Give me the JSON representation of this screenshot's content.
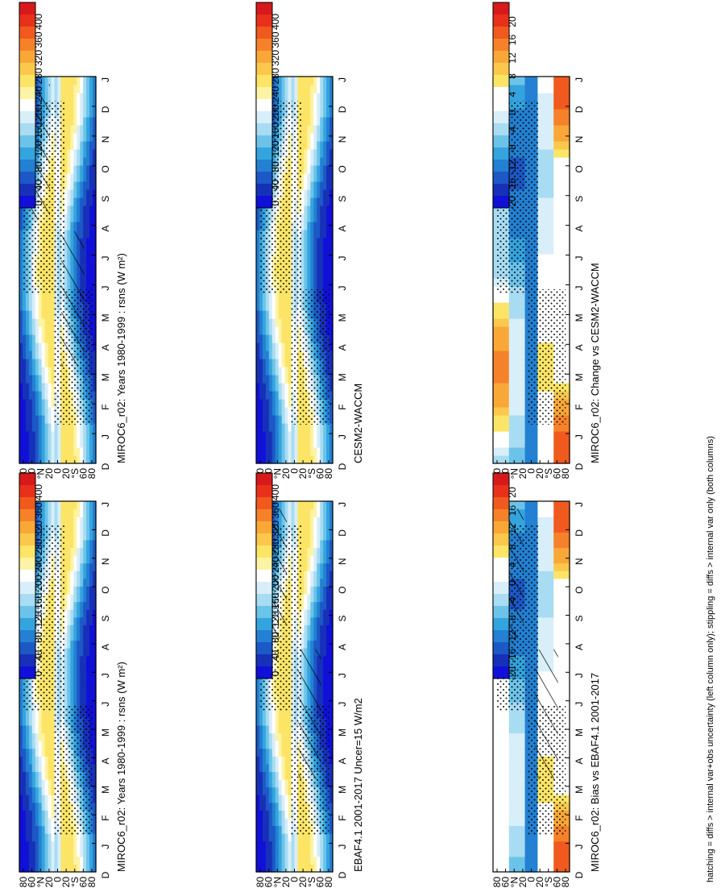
{
  "figure": {
    "footnote": "hatching = diffs > internal var+obs uncertainty (left column only); stippling = diffs > internal var only (both columns)",
    "orientation": "rotated-90-clockwise"
  },
  "chart_data": [
    {
      "type": "heatmap",
      "title": "MIROC6_r02: Years 1980-1999 : rsns (W m²)",
      "x_ticks": [
        "D",
        "J",
        "F",
        "M",
        "A",
        "M",
        "J",
        "J",
        "A",
        "S",
        "O",
        "N",
        "D",
        "J"
      ],
      "y_ticks": [
        "80",
        "60",
        "°N",
        "20",
        "0",
        "20",
        "°S",
        "60",
        "80"
      ],
      "colorbar_labels": [
        "400",
        "360",
        "320",
        "280",
        "240",
        "200",
        "160",
        "120",
        "80",
        "40",
        "0"
      ],
      "colorbar_colors": [
        "#d7191c",
        "#e8301a",
        "#f05a1e",
        "#f5822a",
        "#f9a838",
        "#fbc84c",
        "#fce566",
        "#fdf3a4",
        "#ffffff",
        "#d8eef8",
        "#a8dcf2",
        "#6cc3ea",
        "#34a4de",
        "#2380d2",
        "#1c58c6",
        "#1730b8",
        "#1010d8"
      ],
      "ylim": [
        -90,
        90
      ],
      "hatching": true
    },
    {
      "type": "heatmap",
      "title": "MIROC6_r02: Years 1980-1999 : rsns (W m²)",
      "x_ticks": [
        "D",
        "J",
        "F",
        "M",
        "A",
        "M",
        "J",
        "J",
        "A",
        "S",
        "O",
        "N",
        "D",
        "J"
      ],
      "y_ticks": [
        "80",
        "60",
        "°N",
        "20",
        "0",
        "20",
        "°S",
        "60",
        "80"
      ],
      "colorbar_labels": [
        "400",
        "360",
        "320",
        "280",
        "240",
        "200",
        "160",
        "120",
        "80",
        "40",
        "0"
      ],
      "hatching": false
    },
    {
      "type": "heatmap",
      "title": "EBAF4.1 2001-2017 Uncer=15 W/m2",
      "x_ticks": [
        "D",
        "J",
        "F",
        "M",
        "A",
        "M",
        "J",
        "J",
        "A",
        "S",
        "O",
        "N",
        "D",
        "J"
      ],
      "y_ticks": [
        "80",
        "60",
        "°N",
        "20",
        "0",
        "20",
        "°S",
        "60",
        "80"
      ],
      "colorbar_labels": [
        "400",
        "360",
        "320",
        "280",
        "240",
        "200",
        "160",
        "120",
        "80",
        "40",
        "0"
      ],
      "hatching": true
    },
    {
      "type": "heatmap",
      "title": "CESM2-WACCM",
      "x_ticks": [
        "D",
        "J",
        "F",
        "M",
        "A",
        "M",
        "J",
        "J",
        "A",
        "S",
        "O",
        "N",
        "D",
        "J"
      ],
      "y_ticks": [
        "80",
        "60",
        "°N",
        "20",
        "0",
        "20",
        "°S",
        "60",
        "80"
      ],
      "colorbar_labels": [
        "400",
        "360",
        "320",
        "280",
        "240",
        "200",
        "160",
        "120",
        "80",
        "40",
        "0"
      ],
      "hatching": false
    },
    {
      "type": "heatmap",
      "title": "MIROC6_r02: Bias vs EBAF4.1 2001-2017",
      "x_ticks": [
        "D",
        "J",
        "F",
        "M",
        "A",
        "M",
        "J",
        "J",
        "A",
        "S",
        "O",
        "N",
        "D",
        "J"
      ],
      "y_ticks": [
        "80",
        "60",
        "°N",
        "20",
        "0",
        "20",
        "°S",
        "60",
        "80"
      ],
      "colorbar_labels": [
        "20",
        "16",
        "12",
        "8",
        "4",
        "0",
        "-4",
        "-8",
        "-12",
        "-16",
        "-20"
      ],
      "hatching": true
    },
    {
      "type": "heatmap",
      "title": "MIROC6_r02: Change vs CESM2-WACCM",
      "x_ticks": [
        "D",
        "J",
        "F",
        "M",
        "A",
        "M",
        "J",
        "J",
        "A",
        "S",
        "O",
        "N",
        "D",
        "J"
      ],
      "y_ticks": [
        "80",
        "60",
        "°N",
        "20",
        "0",
        "20",
        "°S",
        "60",
        "80"
      ],
      "colorbar_labels": [
        "20",
        "16",
        "12",
        "8",
        "4",
        "0",
        "-4",
        "-8",
        "-12",
        "-16",
        "-20"
      ],
      "hatching": false
    }
  ]
}
